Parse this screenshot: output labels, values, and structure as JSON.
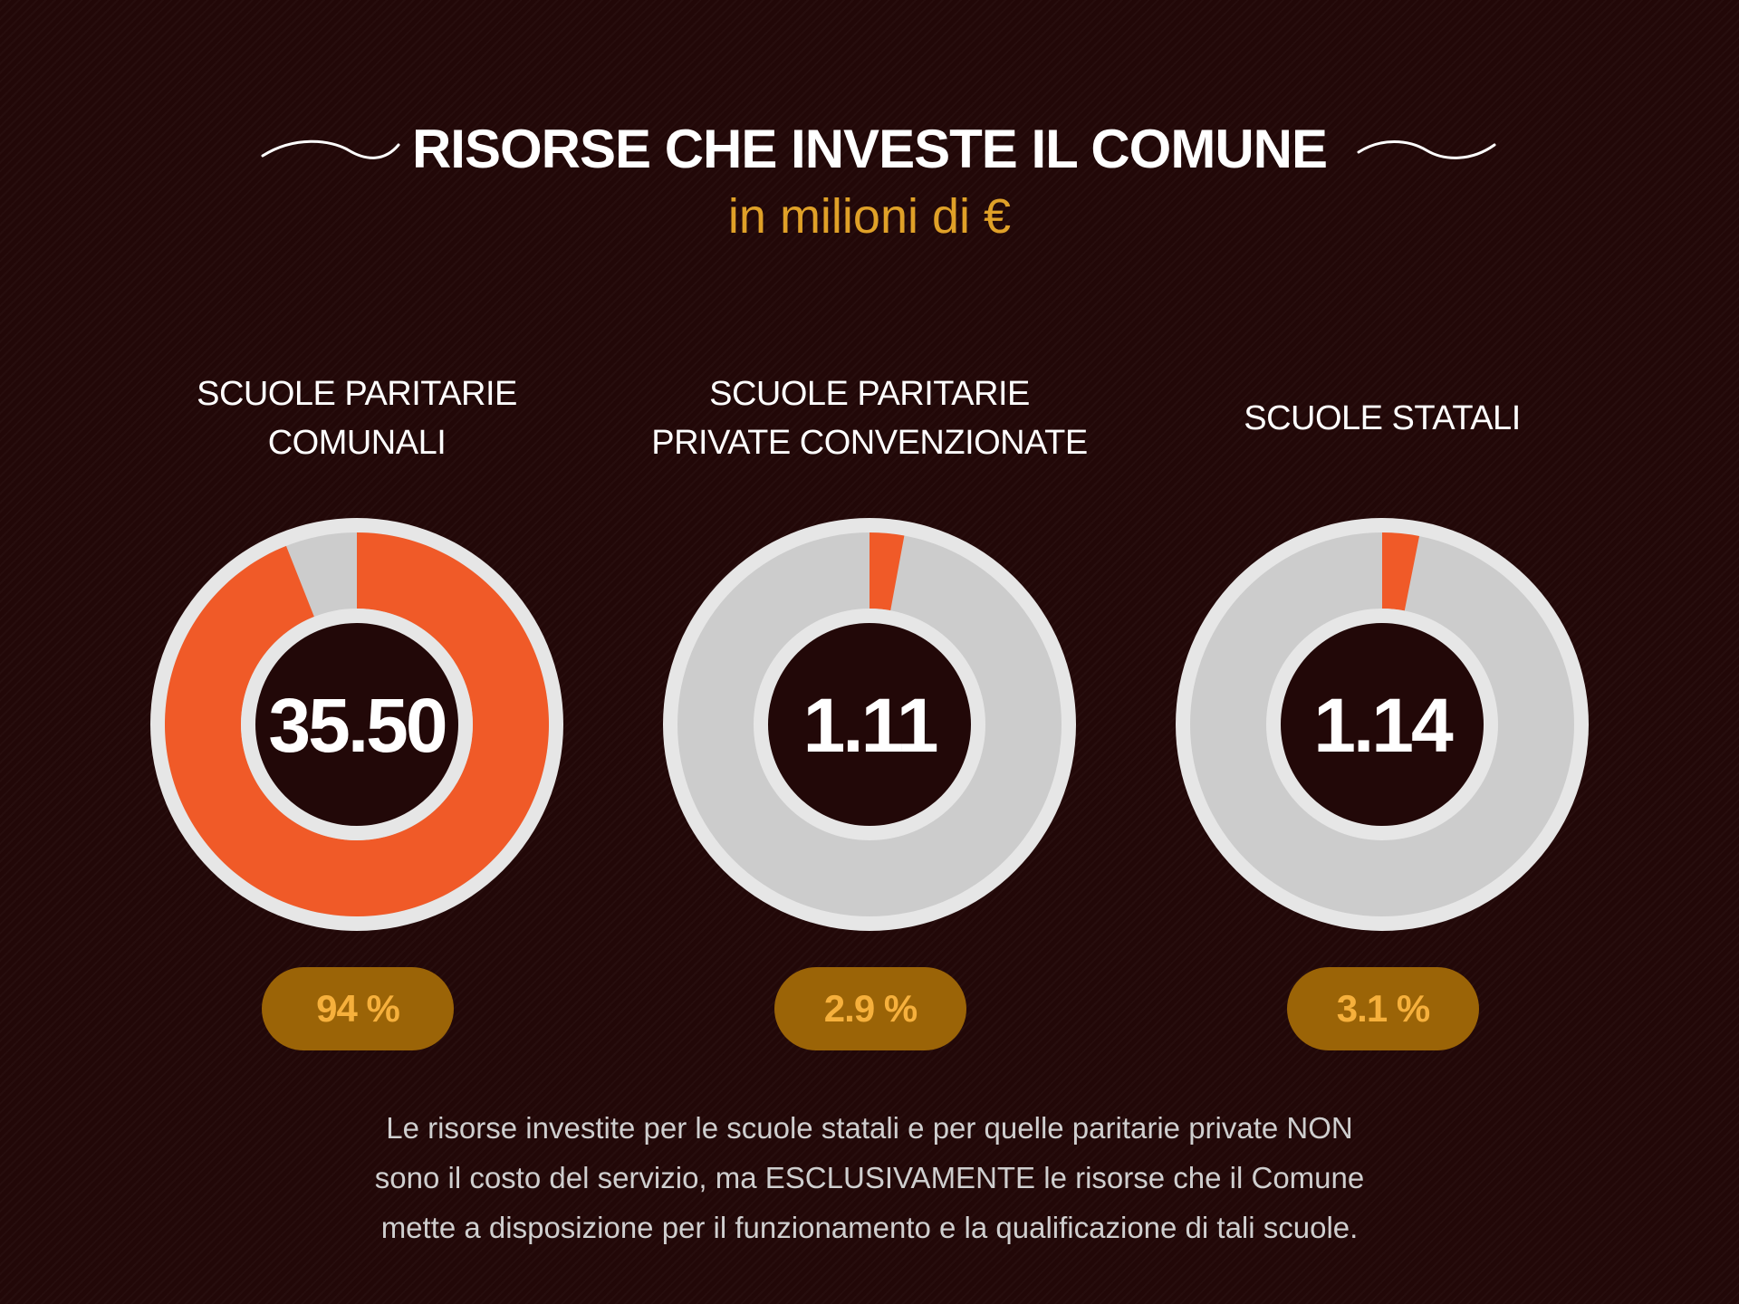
{
  "header": {
    "title": "RISORSE CHE INVESTE IL COMUNE",
    "subtitle": "in milioni di €"
  },
  "colors": {
    "background": "#220808",
    "accent": "#f05a28",
    "ring": "#cccccc",
    "rim": "#e6e6e6",
    "pill_bg": "#9b6407",
    "pill_text": "#f6b03c",
    "subtitle": "#e0a128"
  },
  "chart_data": [
    {
      "type": "pie",
      "label_lines": [
        "SCUOLE PARITARIE",
        "COMUNALI"
      ],
      "value": 35.5,
      "value_label": "35.50",
      "share": 0.94,
      "share_label": "94 %"
    },
    {
      "type": "pie",
      "label_lines": [
        "SCUOLE PARITARIE",
        "PRIVATE CONVENZIONATE"
      ],
      "value": 1.11,
      "value_label": "1.11",
      "share": 0.029,
      "share_label": "2.9 %"
    },
    {
      "type": "pie",
      "label_lines": [
        "SCUOLE STATALI"
      ],
      "value": 1.14,
      "value_label": "1.14",
      "share": 0.031,
      "share_label": "3.1 %"
    }
  ],
  "footnote": {
    "lines": [
      "Le risorse investite per le scuole statali e per quelle paritarie private NON",
      "sono il costo del servizio, ma ESCLUSIVAMENTE le risorse che il Comune",
      "mette a disposizione per il funzionamento e la qualificazione di tali scuole."
    ]
  }
}
